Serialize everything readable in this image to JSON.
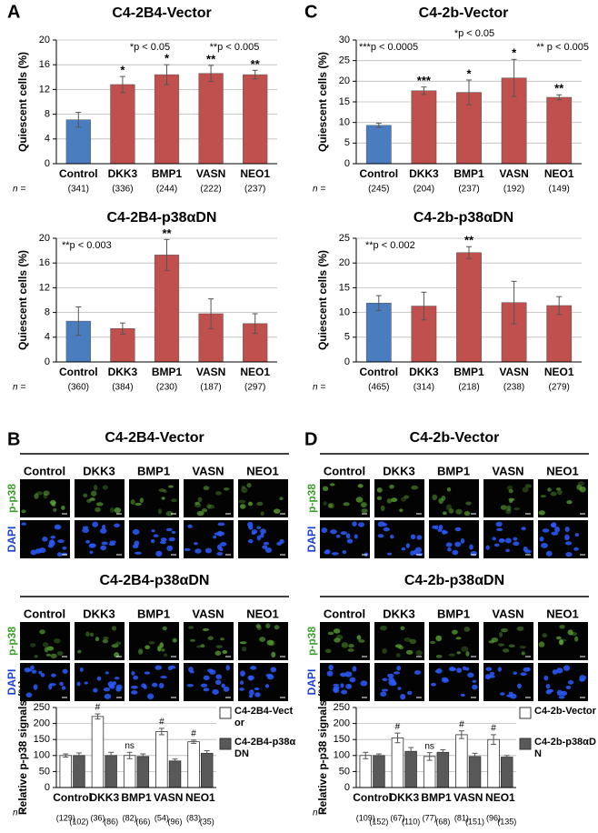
{
  "panel_letters": [
    "A",
    "B",
    "C",
    "D"
  ],
  "chart_data": [
    {
      "type": "bar",
      "title": "C4-2B4-Vector",
      "ylabel": "Quiescent cells (%)",
      "categories": [
        "Control",
        "DKK3",
        "BMP1",
        "VASN",
        "NEO1"
      ],
      "values": [
        7.1,
        12.8,
        14.4,
        14.6,
        14.4
      ],
      "errors": [
        1.2,
        1.3,
        1.6,
        1.3,
        0.7
      ],
      "colors": [
        "#4a7dbf",
        "#c0504d",
        "#c0504d",
        "#c0504d",
        "#c0504d"
      ],
      "sig_labels": [
        null,
        "*",
        "*",
        "**",
        "**"
      ],
      "annotations": [
        "*p < 0.05",
        "**p < 0.005"
      ],
      "n_label": "n =",
      "n_counts": [
        "(341)",
        "(336)",
        "(244)",
        "(222)",
        "(237)"
      ],
      "ylim": [
        0,
        20
      ],
      "yticks": [
        0,
        4,
        8,
        12,
        16,
        20
      ],
      "grid": true
    },
    {
      "type": "bar",
      "title": "C4-2B4-p38αDN",
      "ylabel": "Quiescent cells (%)",
      "categories": [
        "Control",
        "DKK3",
        "BMP1",
        "VASN",
        "NEO1"
      ],
      "values": [
        6.6,
        5.4,
        17.3,
        7.8,
        6.2
      ],
      "errors": [
        2.3,
        0.9,
        2.5,
        2.4,
        1.6
      ],
      "colors": [
        "#4a7dbf",
        "#c0504d",
        "#c0504d",
        "#c0504d",
        "#c0504d"
      ],
      "sig_labels": [
        null,
        null,
        "**",
        null,
        null
      ],
      "annotations": [
        "**p < 0.003"
      ],
      "n_label": "n =",
      "n_counts": [
        "(360)",
        "(384)",
        "(230)",
        "(187)",
        "(297)"
      ],
      "ylim": [
        0,
        20
      ],
      "yticks": [
        0,
        4,
        8,
        12,
        16,
        20
      ],
      "grid": true
    },
    {
      "type": "bar",
      "title": "C4-2b-Vector",
      "ylabel": "Quiescent cells (%)",
      "categories": [
        "Control",
        "DKK3",
        "BMP1",
        "VASN",
        "NEO1"
      ],
      "values": [
        9.3,
        17.7,
        17.3,
        20.8,
        16.1
      ],
      "errors": [
        0.5,
        0.9,
        3.0,
        4.5,
        0.6
      ],
      "colors": [
        "#4a7dbf",
        "#c0504d",
        "#c0504d",
        "#c0504d",
        "#c0504d"
      ],
      "sig_labels": [
        null,
        "***",
        "*",
        "*",
        "**"
      ],
      "annotations": [
        "***p < 0.0005",
        "*p < 0.05",
        "** p < 0.005"
      ],
      "n_label": "n =",
      "n_counts": [
        "(245)",
        "(204)",
        "(237)",
        "(192)",
        "(149)"
      ],
      "ylim": [
        0,
        30
      ],
      "yticks": [
        0,
        5,
        10,
        15,
        20,
        25,
        30
      ],
      "grid": true
    },
    {
      "type": "bar",
      "title": "C4-2b-p38αDN",
      "ylabel": "Quiescent cells (%)",
      "categories": [
        "Control",
        "DKK3",
        "BMP1",
        "VASN",
        "NEO1"
      ],
      "values": [
        11.9,
        11.3,
        22.1,
        12.0,
        11.4
      ],
      "errors": [
        1.5,
        2.8,
        1.2,
        4.3,
        1.8
      ],
      "colors": [
        "#4a7dbf",
        "#c0504d",
        "#c0504d",
        "#c0504d",
        "#c0504d"
      ],
      "sig_labels": [
        null,
        null,
        "**",
        null,
        null
      ],
      "annotations": [
        "**p < 0.002"
      ],
      "n_label": "n =",
      "n_counts": [
        "(465)",
        "(314)",
        "(218)",
        "(238)",
        "(279)"
      ],
      "ylim": [
        0,
        25
      ],
      "yticks": [
        0,
        5,
        10,
        15,
        20,
        25
      ],
      "grid": true
    },
    {
      "type": "grouped_bar",
      "ylabel": "Relative p-p38 signals (%)",
      "categories": [
        "Control",
        "DKK3",
        "BMP1",
        "VASN",
        "NEO1"
      ],
      "series": [
        {
          "name": "C4-2B4-Vector",
          "color": "#ffffff",
          "values": [
            100,
            222,
            100,
            175,
            143
          ],
          "errors": [
            5,
            8,
            10,
            10,
            5
          ]
        },
        {
          "name": "C4-2B4-p38αDN",
          "color": "#595959",
          "values": [
            100,
            100,
            97,
            83,
            107
          ],
          "errors": [
            8,
            10,
            8,
            6,
            8
          ]
        }
      ],
      "sig_labels": [
        null,
        "#",
        "ns",
        "#",
        "#"
      ],
      "n_label": "n =",
      "n_counts": [
        "(129)",
        "(102)",
        "(36)",
        "(86)",
        "(82)",
        "(66)",
        "(54)",
        "(96)",
        "(83)",
        "(35)"
      ],
      "ylim": [
        0,
        250
      ],
      "yticks": [
        0,
        50,
        100,
        150,
        200,
        250
      ],
      "grid": true
    },
    {
      "type": "grouped_bar",
      "ylabel": "Relative p-p38 signals (%)",
      "categories": [
        "Control",
        "DKK3",
        "BMP1",
        "VASN",
        "NEO1"
      ],
      "series": [
        {
          "name": "C4-2b-Vector",
          "color": "#ffffff",
          "values": [
            100,
            155,
            97,
            165,
            150
          ],
          "errors": [
            10,
            15,
            12,
            12,
            15
          ]
        },
        {
          "name": "C4-2b-p38αDN",
          "color": "#595959",
          "values": [
            100,
            113,
            110,
            97,
            95
          ],
          "errors": [
            5,
            12,
            8,
            10,
            5
          ]
        }
      ],
      "sig_labels": [
        null,
        "#",
        "ns",
        "#",
        "#"
      ],
      "n_label": "n =",
      "n_counts": [
        "(109)",
        "(152)",
        "(67)",
        "(110)",
        "(77)",
        "(68)",
        "(81)",
        "(151)",
        "(96)",
        "(135)"
      ],
      "ylim": [
        0,
        250
      ],
      "yticks": [
        0,
        50,
        100,
        150,
        200,
        250
      ],
      "grid": true
    }
  ],
  "image_grids": [
    {
      "sections": [
        {
          "title": "C4-2B4-Vector",
          "columns": [
            "Control",
            "DKK3",
            "BMP1",
            "VASN",
            "NEO1"
          ],
          "rows": [
            "p-p38",
            "DAPI"
          ]
        },
        {
          "title": "C4-2B4-p38αDN",
          "columns": [
            "Control",
            "DKK3",
            "BMP1",
            "VASN",
            "NEO1"
          ],
          "rows": [
            "p-p38",
            "DAPI"
          ]
        }
      ]
    },
    {
      "sections": [
        {
          "title": "C4-2b-Vector",
          "columns": [
            "Control",
            "DKK3",
            "BMP1",
            "VASN",
            "NEO1"
          ],
          "rows": [
            "p-p38",
            "DAPI"
          ]
        },
        {
          "title": "C4-2b-p38αDN",
          "columns": [
            "Control",
            "DKK3",
            "BMP1",
            "VASN",
            "NEO1"
          ],
          "rows": [
            "p-p38",
            "DAPI"
          ]
        }
      ]
    }
  ]
}
